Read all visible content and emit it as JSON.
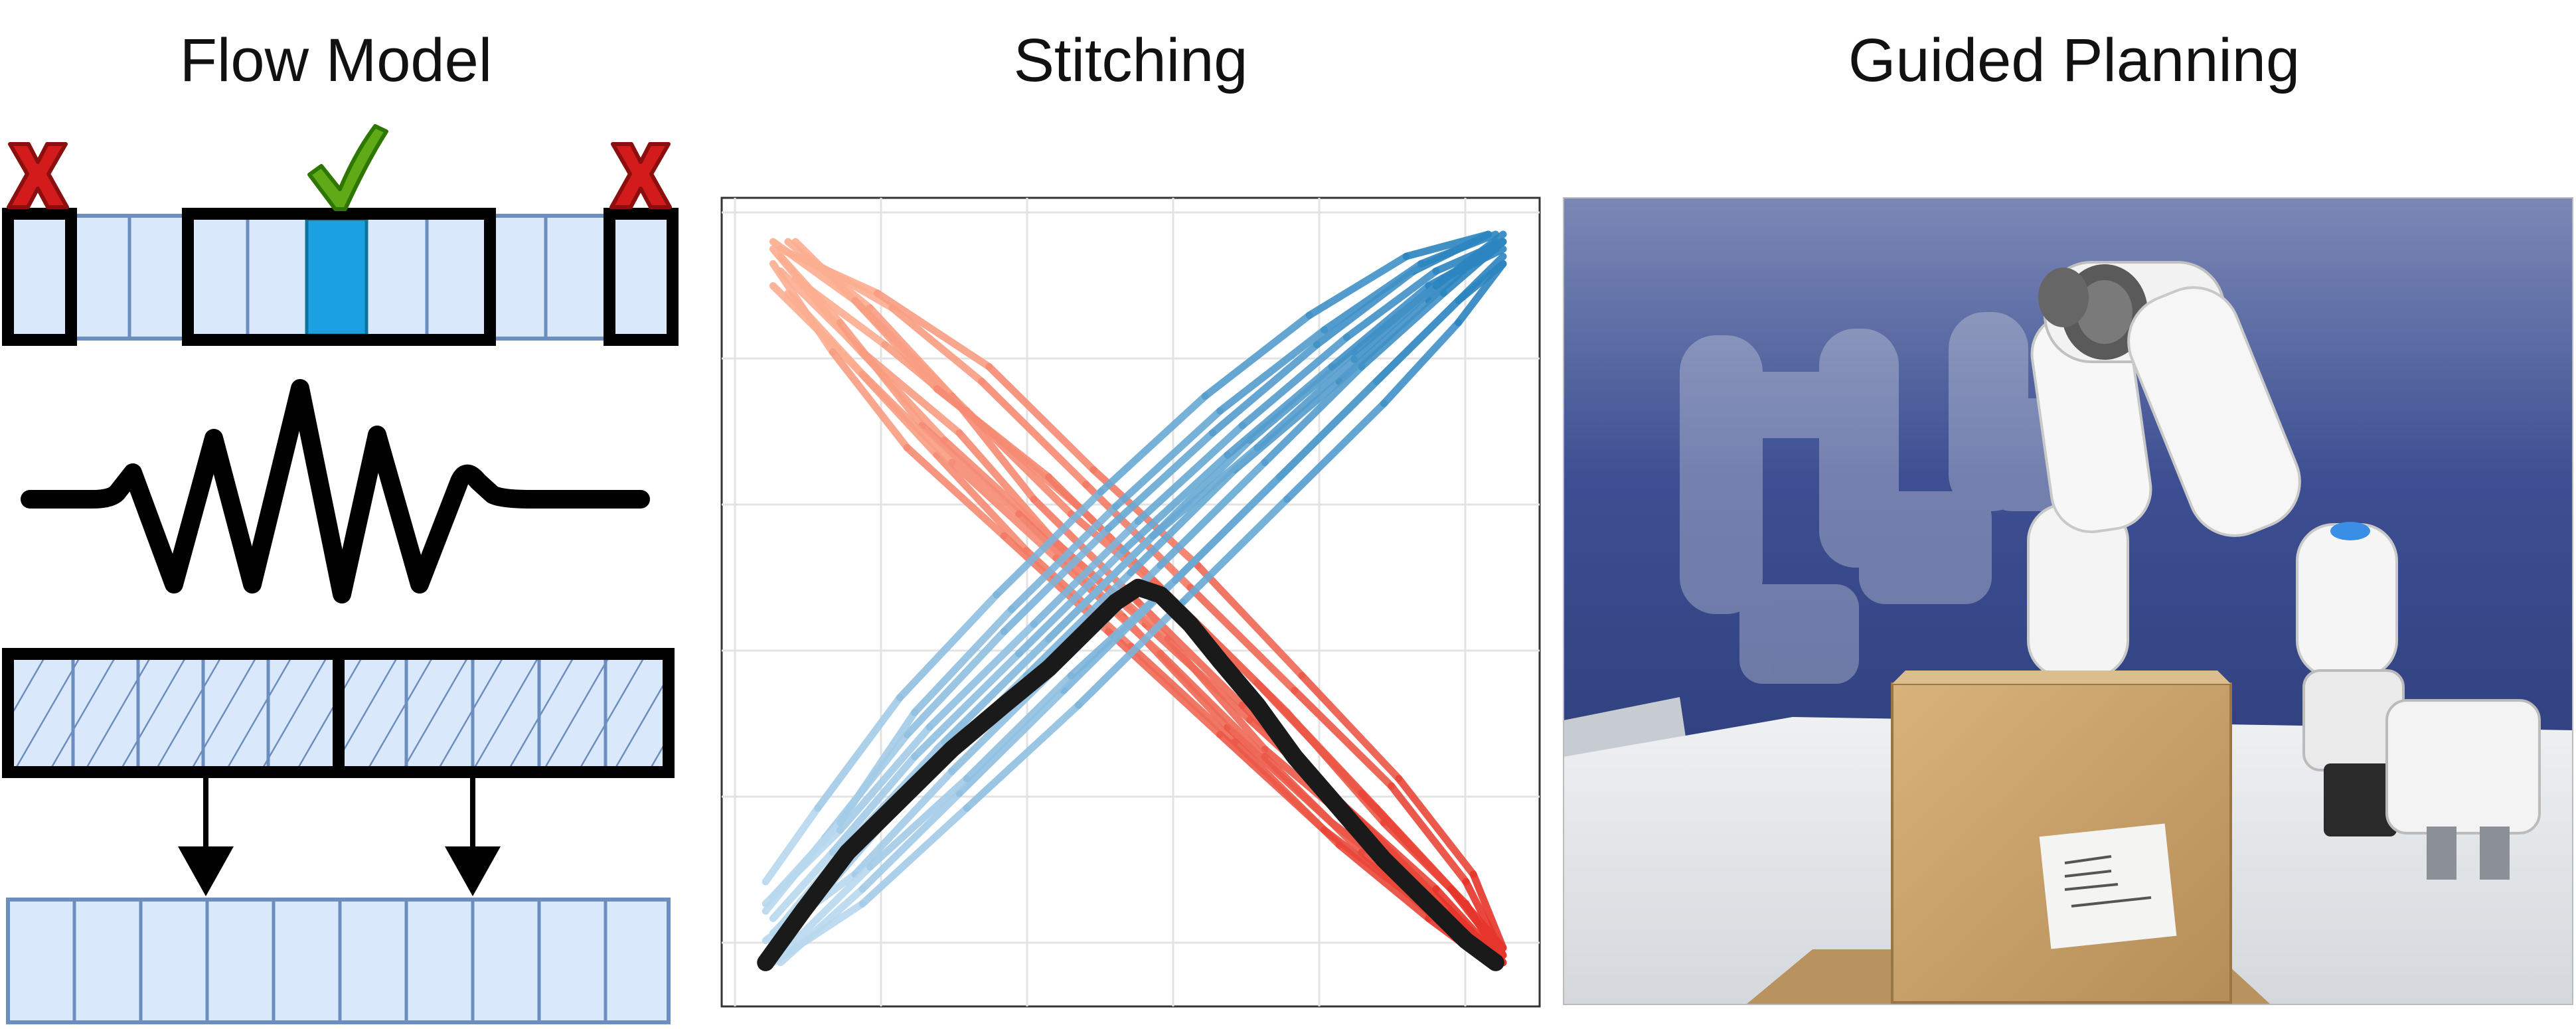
{
  "panels": [
    {
      "id": "flow",
      "title": "Flow Model"
    },
    {
      "id": "stitch",
      "title": "Stitching"
    },
    {
      "id": "guided",
      "title": "Guided Planning"
    }
  ],
  "icons": {
    "reject": "x-mark-icon",
    "accept": "check-mark-icon",
    "noise": "noise-wave-icon",
    "arrow": "down-arrow-icon"
  },
  "colors": {
    "cell_fill": "#dae8fc",
    "cell_stroke": "#6c8ebf",
    "highlight_cell": "#1ba1e2",
    "reject": "#d31b1b",
    "accept": "#60a917",
    "red_series_start": "#fcae91",
    "red_series_end": "#e6352a",
    "blue_series_start": "#b8d8ee",
    "blue_series_end": "#2c85c0",
    "stitched_path": "#1a1a1a",
    "wall": "#2e3f80",
    "table": "#e3e6ea",
    "box": "#c8a06a"
  },
  "chart_data": {
    "type": "line",
    "xlim": [
      0,
      1
    ],
    "ylim": [
      0,
      1
    ],
    "grid": true,
    "series": [
      {
        "color_group": "red",
        "trajectories": [
          [
            [
              0.02,
              0.98
            ],
            [
              0.12,
              0.86
            ],
            [
              0.25,
              0.72
            ],
            [
              0.38,
              0.6
            ],
            [
              0.52,
              0.47
            ],
            [
              0.66,
              0.34
            ],
            [
              0.8,
              0.21
            ],
            [
              0.92,
              0.09
            ],
            [
              1.0,
              0.01
            ]
          ],
          [
            [
              0.03,
              0.95
            ],
            [
              0.14,
              0.84
            ],
            [
              0.27,
              0.73
            ],
            [
              0.4,
              0.58
            ],
            [
              0.55,
              0.45
            ],
            [
              0.68,
              0.3
            ],
            [
              0.82,
              0.18
            ],
            [
              0.93,
              0.08
            ],
            [
              0.99,
              0.02
            ]
          ],
          [
            [
              0.05,
              0.99
            ],
            [
              0.16,
              0.88
            ],
            [
              0.28,
              0.76
            ],
            [
              0.42,
              0.62
            ],
            [
              0.56,
              0.5
            ],
            [
              0.7,
              0.36
            ],
            [
              0.83,
              0.22
            ],
            [
              0.94,
              0.1
            ],
            [
              1.0,
              0.03
            ]
          ],
          [
            [
              0.02,
              0.93
            ],
            [
              0.13,
              0.82
            ],
            [
              0.24,
              0.7
            ],
            [
              0.36,
              0.57
            ],
            [
              0.5,
              0.44
            ],
            [
              0.64,
              0.31
            ],
            [
              0.78,
              0.17
            ],
            [
              0.9,
              0.07
            ],
            [
              0.98,
              0.01
            ]
          ],
          [
            [
              0.06,
              0.97
            ],
            [
              0.18,
              0.9
            ],
            [
              0.3,
              0.8
            ],
            [
              0.44,
              0.66
            ],
            [
              0.58,
              0.52
            ],
            [
              0.72,
              0.38
            ],
            [
              0.85,
              0.25
            ],
            [
              0.95,
              0.12
            ],
            [
              1.0,
              0.02
            ]
          ],
          [
            [
              0.03,
              0.97
            ],
            [
              0.11,
              0.88
            ],
            [
              0.22,
              0.74
            ],
            [
              0.35,
              0.62
            ],
            [
              0.49,
              0.48
            ],
            [
              0.63,
              0.33
            ],
            [
              0.77,
              0.2
            ],
            [
              0.9,
              0.1
            ],
            [
              0.99,
              0.01
            ]
          ],
          [
            [
              0.04,
              0.99
            ],
            [
              0.15,
              0.9
            ],
            [
              0.26,
              0.78
            ],
            [
              0.37,
              0.64
            ],
            [
              0.51,
              0.5
            ],
            [
              0.65,
              0.36
            ],
            [
              0.79,
              0.22
            ],
            [
              0.91,
              0.11
            ],
            [
              1.0,
              0.01
            ]
          ],
          [
            [
              0.02,
              0.96
            ],
            [
              0.1,
              0.84
            ],
            [
              0.2,
              0.71
            ],
            [
              0.33,
              0.59
            ],
            [
              0.47,
              0.46
            ],
            [
              0.62,
              0.32
            ],
            [
              0.76,
              0.19
            ],
            [
              0.89,
              0.09
            ],
            [
              0.98,
              0.02
            ]
          ],
          [
            [
              0.05,
              0.94
            ],
            [
              0.17,
              0.85
            ],
            [
              0.29,
              0.75
            ],
            [
              0.43,
              0.63
            ],
            [
              0.57,
              0.49
            ],
            [
              0.71,
              0.35
            ],
            [
              0.84,
              0.2
            ],
            [
              0.95,
              0.09
            ],
            [
              1.0,
              0.01
            ]
          ],
          [
            [
              0.02,
              0.99
            ],
            [
              0.13,
              0.91
            ],
            [
              0.24,
              0.79
            ],
            [
              0.39,
              0.67
            ],
            [
              0.53,
              0.53
            ],
            [
              0.67,
              0.39
            ],
            [
              0.81,
              0.24
            ],
            [
              0.93,
              0.11
            ],
            [
              1.0,
              0.02
            ]
          ],
          [
            [
              0.04,
              0.92
            ],
            [
              0.14,
              0.81
            ],
            [
              0.26,
              0.69
            ],
            [
              0.4,
              0.56
            ],
            [
              0.54,
              0.43
            ],
            [
              0.68,
              0.29
            ],
            [
              0.81,
              0.16
            ],
            [
              0.92,
              0.06
            ],
            [
              0.99,
              0.01
            ]
          ],
          [
            [
              0.03,
              0.98
            ],
            [
              0.16,
              0.92
            ],
            [
              0.31,
              0.82
            ],
            [
              0.45,
              0.68
            ],
            [
              0.59,
              0.55
            ],
            [
              0.73,
              0.4
            ],
            [
              0.86,
              0.26
            ],
            [
              0.96,
              0.13
            ],
            [
              1.0,
              0.03
            ]
          ]
        ]
      },
      {
        "color_group": "blue",
        "trajectories": [
          [
            [
              0.01,
              0.02
            ],
            [
              0.1,
              0.12
            ],
            [
              0.22,
              0.26
            ],
            [
              0.36,
              0.4
            ],
            [
              0.5,
              0.54
            ],
            [
              0.64,
              0.68
            ],
            [
              0.78,
              0.8
            ],
            [
              0.9,
              0.91
            ],
            [
              0.99,
              0.99
            ]
          ],
          [
            [
              0.02,
              0.05
            ],
            [
              0.12,
              0.15
            ],
            [
              0.24,
              0.3
            ],
            [
              0.38,
              0.44
            ],
            [
              0.52,
              0.58
            ],
            [
              0.66,
              0.72
            ],
            [
              0.8,
              0.84
            ],
            [
              0.92,
              0.94
            ],
            [
              1.0,
              0.98
            ]
          ],
          [
            [
              0.01,
              0.08
            ],
            [
              0.09,
              0.18
            ],
            [
              0.2,
              0.32
            ],
            [
              0.33,
              0.46
            ],
            [
              0.47,
              0.6
            ],
            [
              0.61,
              0.73
            ],
            [
              0.75,
              0.85
            ],
            [
              0.88,
              0.95
            ],
            [
              0.98,
              1.0
            ]
          ],
          [
            [
              0.03,
              0.01
            ],
            [
              0.14,
              0.11
            ],
            [
              0.27,
              0.24
            ],
            [
              0.41,
              0.38
            ],
            [
              0.55,
              0.52
            ],
            [
              0.69,
              0.66
            ],
            [
              0.82,
              0.79
            ],
            [
              0.93,
              0.9
            ],
            [
              1.0,
              0.97
            ]
          ],
          [
            [
              0.02,
              0.1
            ],
            [
              0.11,
              0.2
            ],
            [
              0.21,
              0.35
            ],
            [
              0.34,
              0.49
            ],
            [
              0.48,
              0.63
            ],
            [
              0.62,
              0.76
            ],
            [
              0.76,
              0.87
            ],
            [
              0.89,
              0.96
            ],
            [
              0.99,
              1.0
            ]
          ],
          [
            [
              0.01,
              0.04
            ],
            [
              0.13,
              0.13
            ],
            [
              0.26,
              0.27
            ],
            [
              0.4,
              0.41
            ],
            [
              0.54,
              0.55
            ],
            [
              0.68,
              0.69
            ],
            [
              0.81,
              0.82
            ],
            [
              0.92,
              0.92
            ],
            [
              1.0,
              0.99
            ]
          ],
          [
            [
              0.02,
              0.07
            ],
            [
              0.1,
              0.16
            ],
            [
              0.21,
              0.29
            ],
            [
              0.35,
              0.43
            ],
            [
              0.49,
              0.57
            ],
            [
              0.63,
              0.7
            ],
            [
              0.77,
              0.82
            ],
            [
              0.9,
              0.93
            ],
            [
              0.99,
              0.98
            ]
          ],
          [
            [
              0.04,
              0.03
            ],
            [
              0.15,
              0.14
            ],
            [
              0.28,
              0.26
            ],
            [
              0.42,
              0.4
            ],
            [
              0.56,
              0.53
            ],
            [
              0.7,
              0.67
            ],
            [
              0.83,
              0.8
            ],
            [
              0.94,
              0.91
            ],
            [
              1.0,
              0.96
            ]
          ],
          [
            [
              0.01,
              0.12
            ],
            [
              0.08,
              0.22
            ],
            [
              0.19,
              0.37
            ],
            [
              0.32,
              0.51
            ],
            [
              0.46,
              0.65
            ],
            [
              0.6,
              0.78
            ],
            [
              0.74,
              0.89
            ],
            [
              0.87,
              0.97
            ],
            [
              0.98,
              1.0
            ]
          ],
          [
            [
              0.03,
              0.06
            ],
            [
              0.12,
              0.17
            ],
            [
              0.25,
              0.31
            ],
            [
              0.39,
              0.45
            ],
            [
              0.53,
              0.59
            ],
            [
              0.67,
              0.71
            ],
            [
              0.8,
              0.83
            ],
            [
              0.91,
              0.93
            ],
            [
              1.0,
              1.0
            ]
          ],
          [
            [
              0.02,
              0.01
            ],
            [
              0.14,
              0.09
            ],
            [
              0.28,
              0.22
            ],
            [
              0.43,
              0.36
            ],
            [
              0.57,
              0.5
            ],
            [
              0.71,
              0.64
            ],
            [
              0.84,
              0.77
            ],
            [
              0.94,
              0.88
            ],
            [
              1.0,
              0.96
            ]
          ],
          [
            [
              0.01,
              0.09
            ],
            [
              0.11,
              0.19
            ],
            [
              0.23,
              0.33
            ],
            [
              0.37,
              0.47
            ],
            [
              0.51,
              0.61
            ],
            [
              0.65,
              0.74
            ],
            [
              0.79,
              0.86
            ],
            [
              0.91,
              0.95
            ],
            [
              1.0,
              0.99
            ]
          ]
        ]
      },
      {
        "color_group": "stitched",
        "trajectories": [
          [
            [
              0.01,
              0.01
            ],
            [
              0.06,
              0.08
            ],
            [
              0.12,
              0.16
            ],
            [
              0.19,
              0.23
            ],
            [
              0.26,
              0.3
            ],
            [
              0.33,
              0.36
            ],
            [
              0.39,
              0.41
            ],
            [
              0.44,
              0.46
            ],
            [
              0.48,
              0.5
            ],
            [
              0.51,
              0.52
            ],
            [
              0.54,
              0.51
            ],
            [
              0.58,
              0.47
            ],
            [
              0.62,
              0.42
            ],
            [
              0.67,
              0.36
            ],
            [
              0.72,
              0.29
            ],
            [
              0.78,
              0.22
            ],
            [
              0.84,
              0.15
            ],
            [
              0.9,
              0.09
            ],
            [
              0.95,
              0.04
            ],
            [
              0.99,
              0.01
            ]
          ]
        ]
      }
    ]
  }
}
